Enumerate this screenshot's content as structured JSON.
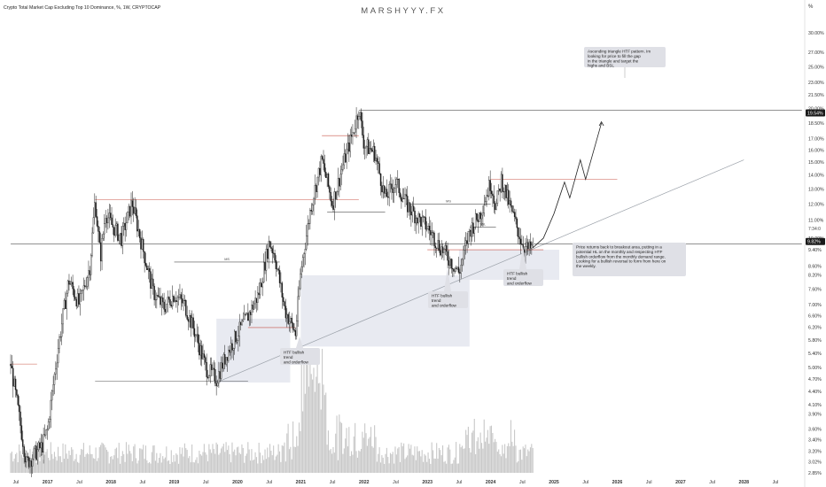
{
  "header": {
    "symbol_title": "Crypto Total Market Cap Excluding Top 10 Dominance, %, 1W, CRYPTOCAP",
    "watermark": "MARSHYYY.FX",
    "axis_unit": "%"
  },
  "colors": {
    "candle": "#1a1a1a",
    "volume": "#c8c8c8",
    "level_red": "#c0392b",
    "level_dark": "#333333",
    "zone_fill": "#e4e6ee",
    "callout_fill": "#dfe0e6",
    "trendline": "#9aa0a8",
    "price_label_bg": "#1a1a1a"
  },
  "chart_data": {
    "type": "line",
    "title": "Crypto Total Market Cap Excluding Top 10 Dominance, %, 1W, CRYPTOCAP",
    "y_scale": "log",
    "ylim": [
      2.85,
      30.0
    ],
    "y_tick_labels": [
      "30.00%",
      "27.00%",
      "25.00%",
      "23.00%",
      "21.50%",
      "20.00%",
      "18.50%",
      "17.00%",
      "16.00%",
      "15.00%",
      "14.00%",
      "13.00%",
      "12.00%",
      "11.00%",
      "10.00%",
      "9.40%",
      "8.60%",
      "8.20%",
      "7.60%",
      "7.00%",
      "6.60%",
      "6.20%",
      "5.80%",
      "5.40%",
      "5.00%",
      "4.70%",
      "4.40%",
      "4.10%",
      "3.90%",
      "3.60%",
      "3.40%",
      "3.20%",
      "3.02%",
      "2.85%"
    ],
    "x_tick_labels": [
      "Jul",
      "2017",
      "Jul",
      "2018",
      "Jul",
      "2019",
      "Jul",
      "2020",
      "Jul",
      "2021",
      "Jul",
      "2022",
      "Jul",
      "2023",
      "Jul",
      "2024",
      "Jul",
      "2025",
      "Jul",
      "2026",
      "Jul",
      "2027",
      "Jul",
      "2028",
      "Jul"
    ],
    "x_tick_dates": [
      "2016-07",
      "2017-01",
      "2017-07",
      "2018-01",
      "2018-07",
      "2019-01",
      "2019-07",
      "2020-01",
      "2020-07",
      "2021-01",
      "2021-07",
      "2022-01",
      "2022-07",
      "2023-01",
      "2023-07",
      "2024-01",
      "2024-07",
      "2025-01",
      "2025-07",
      "2026-01",
      "2026-07",
      "2027-01",
      "2027-07",
      "2028-01",
      "2028-07"
    ],
    "series": [
      {
        "points": [
          [
            "2016-06",
            5.1
          ],
          [
            "2016-09",
            3.0
          ],
          [
            "2016-12",
            3.3
          ],
          [
            "2017-01",
            3.6
          ],
          [
            "2017-03",
            5.6
          ],
          [
            "2017-05",
            8.0
          ],
          [
            "2017-07",
            7.0
          ],
          [
            "2017-09",
            8.6
          ],
          [
            "2017-10",
            12.3
          ],
          [
            "2017-11",
            9.0
          ],
          [
            "2017-12",
            11.5
          ],
          [
            "2018-01",
            10.8
          ],
          [
            "2018-03",
            10.0
          ],
          [
            "2018-05",
            12.1
          ],
          [
            "2018-07",
            9.5
          ],
          [
            "2018-09",
            7.5
          ],
          [
            "2018-11",
            6.9
          ],
          [
            "2019-01",
            7.4
          ],
          [
            "2019-03",
            7.0
          ],
          [
            "2019-05",
            6.0
          ],
          [
            "2019-07",
            5.0
          ],
          [
            "2019-09",
            4.7
          ],
          [
            "2019-11",
            5.4
          ],
          [
            "2020-01",
            6.0
          ],
          [
            "2020-03",
            6.6
          ],
          [
            "2020-05",
            7.4
          ],
          [
            "2020-07",
            9.8
          ],
          [
            "2020-08",
            9.2
          ],
          [
            "2020-10",
            6.8
          ],
          [
            "2020-12",
            6.0
          ],
          [
            "2021-01",
            8.4
          ],
          [
            "2021-03",
            12.0
          ],
          [
            "2021-05",
            15.2
          ],
          [
            "2021-07",
            12.0
          ],
          [
            "2021-09",
            14.8
          ],
          [
            "2021-11",
            17.8
          ],
          [
            "2021-12",
            20.0
          ],
          [
            "2022-01",
            16.5
          ],
          [
            "2022-03",
            15.8
          ],
          [
            "2022-05",
            12.4
          ],
          [
            "2022-07",
            13.5
          ],
          [
            "2022-09",
            12.0
          ],
          [
            "2022-11",
            11.2
          ],
          [
            "2023-01",
            10.6
          ],
          [
            "2023-03",
            9.7
          ],
          [
            "2023-05",
            9.0
          ],
          [
            "2023-07",
            8.3
          ],
          [
            "2023-09",
            10.4
          ],
          [
            "2023-11",
            11.4
          ],
          [
            "2024-01",
            13.5
          ],
          [
            "2024-02",
            11.8
          ],
          [
            "2024-03",
            13.7
          ],
          [
            "2024-05",
            11.5
          ],
          [
            "2024-07",
            9.7
          ],
          [
            "2024-08",
            9.4
          ],
          [
            "2024-09",
            9.5
          ]
        ]
      },
      {
        "name": "projection",
        "points": [
          [
            "2024-09",
            9.5
          ],
          [
            "2024-11",
            10.0
          ],
          [
            "2025-01",
            11.4
          ],
          [
            "2025-03",
            13.5
          ],
          [
            "2025-04",
            12.4
          ],
          [
            "2025-06",
            15.2
          ],
          [
            "2025-07",
            13.7
          ],
          [
            "2025-10",
            18.5
          ]
        ]
      }
    ],
    "levels": [
      {
        "label": "",
        "value": 5.1,
        "from": "2016-06",
        "to": "2016-11",
        "color": "level_red"
      },
      {
        "label": "",
        "value": 12.3,
        "from": "2017-10",
        "to": "2021-12",
        "color": "level_red"
      },
      {
        "label": "",
        "value": 4.65,
        "from": "2017-10",
        "to": "2020-03",
        "color": "level_dark"
      },
      {
        "label": "MS",
        "value": 8.8,
        "from": "2019-01",
        "to": "2020-09",
        "color": "level_dark"
      },
      {
        "label": "",
        "value": 6.2,
        "from": "2020-03",
        "to": "2020-12",
        "color": "level_red"
      },
      {
        "label": "",
        "value": 17.3,
        "from": "2021-05",
        "to": "2021-12",
        "color": "level_red"
      },
      {
        "label": "",
        "value": 11.5,
        "from": "2021-06",
        "to": "2022-05",
        "color": "level_dark"
      },
      {
        "label": "",
        "value": 19.8,
        "from": "2021-12",
        "to": "2028-12",
        "color": "level_dark"
      },
      {
        "label": "MS",
        "value": 12.0,
        "from": "2022-09",
        "to": "2024-01",
        "color": "level_dark"
      },
      {
        "label": "SSL",
        "value": 10.6,
        "from": "2023-09",
        "to": "2024-02",
        "color": "level_dark"
      },
      {
        "label": "",
        "value": 13.7,
        "from": "2024-01",
        "to": "2026-01",
        "color": "level_red"
      },
      {
        "label": "",
        "value": 9.7,
        "from": "2016-06",
        "to": "2028-12",
        "color": "level_dark"
      },
      {
        "label": "",
        "value": 9.4,
        "from": "2023-01",
        "to": "2024-11",
        "color": "level_red"
      }
    ],
    "zones": [
      {
        "from": "2019-09",
        "to": "2020-11",
        "bottom": 4.62,
        "top": 6.5
      },
      {
        "from": "2021-01",
        "to": "2023-09",
        "bottom": 5.6,
        "top": 8.2
      },
      {
        "from": "2023-07",
        "to": "2025-02",
        "bottom": 8.0,
        "top": 9.4
      }
    ],
    "trendline": {
      "from": [
        "2019-09",
        4.62
      ],
      "to": [
        "2028-01",
        15.2
      ]
    },
    "last_price": {
      "label": "9.82%",
      "value": 9.82
    },
    "top_level_label": {
      "label": "19.54%",
      "value": 19.54
    },
    "secondary_price_label": "7:34:0"
  },
  "annotations": {
    "ascending_triangle": "Ascending triangle HTF pattern. Im looking for price to fill the gap in the triangle and target the highs and BSL",
    "breakout_area": "Price returns back to breakout area, putting in a potential HL on the monthly and respecting HTF bullish orderflow from the monthly demand range.\n\nLooking for a bullish reversal to form from here on the weekly.",
    "htf_1": "HTF bullish trend\nand orderflow",
    "htf_2": "HTF bullish trend\nand orderflow",
    "htf_3": "HTF bullish trend\nand orderflow"
  }
}
